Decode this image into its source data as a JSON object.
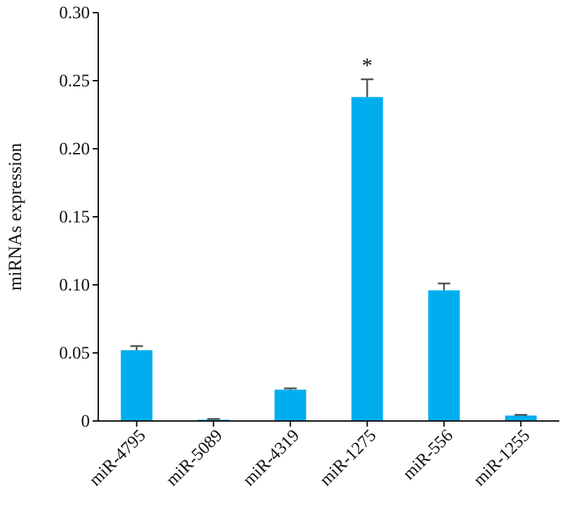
{
  "chart_data": {
    "type": "bar",
    "title": "",
    "xlabel": "",
    "ylabel": "miRNAs expression",
    "categories": [
      "miR-4795",
      "miR-5089",
      "miR-4319",
      "miR-1275",
      "miR-556",
      "miR-1255"
    ],
    "values": [
      0.052,
      0.001,
      0.023,
      0.238,
      0.096,
      0.004
    ],
    "error_upper": [
      0.003,
      0.0005,
      0.001,
      0.013,
      0.005,
      0.0005
    ],
    "ylim": [
      0,
      0.3
    ],
    "yticks": [
      0,
      0.05,
      0.1,
      0.15,
      0.2,
      0.25,
      0.3
    ],
    "ytick_labels": [
      "0",
      "0.05",
      "0.10",
      "0.15",
      "0.20",
      "0.25",
      "0.30"
    ],
    "annotations": [
      {
        "category": "miR-1275",
        "text": "*"
      }
    ],
    "bar_color": "#00AEEF",
    "error_color": "#555555",
    "grid": false,
    "legend": "none"
  }
}
